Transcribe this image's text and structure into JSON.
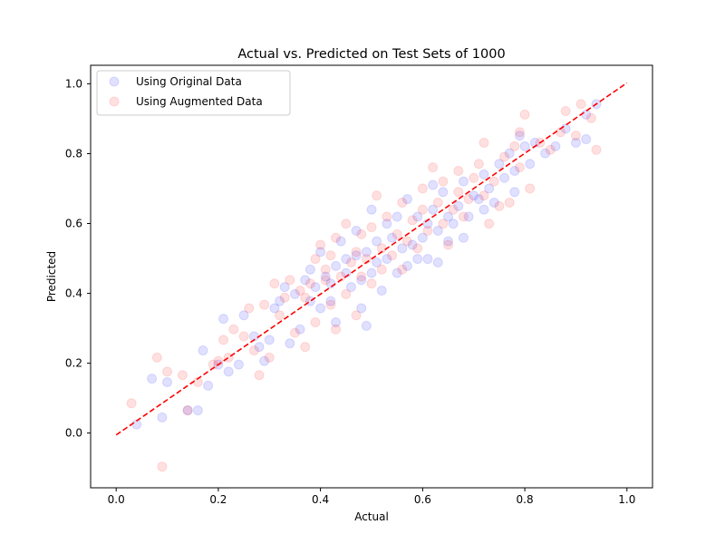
{
  "chart_data": {
    "type": "scatter",
    "title": "Actual vs. Predicted on Test Sets of 1000",
    "xlabel": "Actual",
    "ylabel": "Predicted",
    "xlim": [
      -0.05,
      1.05
    ],
    "ylim": [
      -0.15,
      1.05
    ],
    "xticks": [
      "0.0",
      "0.2",
      "0.4",
      "0.6",
      "0.8",
      "1.0"
    ],
    "yticks": [
      "0.0",
      "0.2",
      "0.4",
      "0.6",
      "0.8",
      "1.0"
    ],
    "grid": false,
    "legend_position": "top-left",
    "series": [
      {
        "name": "Using Original Data",
        "color": "#0000ff",
        "alpha": 0.12,
        "points": [
          [
            0.04,
            0.03
          ],
          [
            0.07,
            0.16
          ],
          [
            0.09,
            0.05
          ],
          [
            0.1,
            0.15
          ],
          [
            0.14,
            0.07
          ],
          [
            0.16,
            0.07
          ],
          [
            0.17,
            0.24
          ],
          [
            0.18,
            0.14
          ],
          [
            0.2,
            0.2
          ],
          [
            0.21,
            0.33
          ],
          [
            0.22,
            0.18
          ],
          [
            0.24,
            0.2
          ],
          [
            0.25,
            0.34
          ],
          [
            0.27,
            0.28
          ],
          [
            0.28,
            0.25
          ],
          [
            0.29,
            0.21
          ],
          [
            0.3,
            0.27
          ],
          [
            0.31,
            0.36
          ],
          [
            0.32,
            0.38
          ],
          [
            0.33,
            0.42
          ],
          [
            0.34,
            0.26
          ],
          [
            0.35,
            0.4
          ],
          [
            0.36,
            0.3
          ],
          [
            0.37,
            0.44
          ],
          [
            0.38,
            0.38
          ],
          [
            0.38,
            0.47
          ],
          [
            0.39,
            0.42
          ],
          [
            0.4,
            0.36
          ],
          [
            0.4,
            0.52
          ],
          [
            0.41,
            0.45
          ],
          [
            0.42,
            0.43
          ],
          [
            0.42,
            0.38
          ],
          [
            0.43,
            0.48
          ],
          [
            0.43,
            0.32
          ],
          [
            0.44,
            0.55
          ],
          [
            0.45,
            0.46
          ],
          [
            0.45,
            0.5
          ],
          [
            0.46,
            0.42
          ],
          [
            0.47,
            0.51
          ],
          [
            0.47,
            0.58
          ],
          [
            0.48,
            0.44
          ],
          [
            0.48,
            0.36
          ],
          [
            0.49,
            0.31
          ],
          [
            0.49,
            0.52
          ],
          [
            0.5,
            0.46
          ],
          [
            0.5,
            0.64
          ],
          [
            0.51,
            0.49
          ],
          [
            0.51,
            0.55
          ],
          [
            0.52,
            0.41
          ],
          [
            0.53,
            0.5
          ],
          [
            0.53,
            0.6
          ],
          [
            0.54,
            0.56
          ],
          [
            0.55,
            0.46
          ],
          [
            0.55,
            0.62
          ],
          [
            0.56,
            0.53
          ],
          [
            0.57,
            0.48
          ],
          [
            0.57,
            0.67
          ],
          [
            0.58,
            0.54
          ],
          [
            0.59,
            0.62
          ],
          [
            0.59,
            0.5
          ],
          [
            0.6,
            0.56
          ],
          [
            0.61,
            0.6
          ],
          [
            0.61,
            0.5
          ],
          [
            0.62,
            0.64
          ],
          [
            0.62,
            0.71
          ],
          [
            0.63,
            0.49
          ],
          [
            0.63,
            0.58
          ],
          [
            0.64,
            0.69
          ],
          [
            0.65,
            0.62
          ],
          [
            0.65,
            0.55
          ],
          [
            0.66,
            0.6
          ],
          [
            0.67,
            0.65
          ],
          [
            0.68,
            0.56
          ],
          [
            0.68,
            0.72
          ],
          [
            0.69,
            0.62
          ],
          [
            0.7,
            0.68
          ],
          [
            0.71,
            0.67
          ],
          [
            0.72,
            0.64
          ],
          [
            0.72,
            0.74
          ],
          [
            0.73,
            0.7
          ],
          [
            0.74,
            0.66
          ],
          [
            0.75,
            0.77
          ],
          [
            0.76,
            0.73
          ],
          [
            0.77,
            0.8
          ],
          [
            0.78,
            0.69
          ],
          [
            0.78,
            0.75
          ],
          [
            0.79,
            0.85
          ],
          [
            0.8,
            0.82
          ],
          [
            0.81,
            0.77
          ],
          [
            0.82,
            0.83
          ],
          [
            0.84,
            0.8
          ],
          [
            0.86,
            0.82
          ],
          [
            0.88,
            0.87
          ],
          [
            0.9,
            0.83
          ],
          [
            0.92,
            0.91
          ],
          [
            0.92,
            0.84
          ],
          [
            0.94,
            0.94
          ]
        ]
      },
      {
        "name": "Using Augmented Data",
        "color": "#ff0000",
        "alpha": 0.12,
        "points": [
          [
            0.03,
            0.09
          ],
          [
            0.08,
            0.22
          ],
          [
            0.09,
            -0.09
          ],
          [
            0.1,
            0.18
          ],
          [
            0.13,
            0.17
          ],
          [
            0.14,
            0.07
          ],
          [
            0.16,
            0.15
          ],
          [
            0.19,
            0.2
          ],
          [
            0.2,
            0.21
          ],
          [
            0.21,
            0.27
          ],
          [
            0.22,
            0.22
          ],
          [
            0.23,
            0.3
          ],
          [
            0.25,
            0.28
          ],
          [
            0.26,
            0.36
          ],
          [
            0.27,
            0.24
          ],
          [
            0.28,
            0.17
          ],
          [
            0.29,
            0.37
          ],
          [
            0.3,
            0.22
          ],
          [
            0.31,
            0.43
          ],
          [
            0.32,
            0.34
          ],
          [
            0.33,
            0.39
          ],
          [
            0.34,
            0.44
          ],
          [
            0.35,
            0.29
          ],
          [
            0.36,
            0.41
          ],
          [
            0.37,
            0.25
          ],
          [
            0.37,
            0.39
          ],
          [
            0.38,
            0.43
          ],
          [
            0.39,
            0.32
          ],
          [
            0.39,
            0.5
          ],
          [
            0.4,
            0.54
          ],
          [
            0.41,
            0.44
          ],
          [
            0.41,
            0.47
          ],
          [
            0.42,
            0.37
          ],
          [
            0.42,
            0.51
          ],
          [
            0.43,
            0.3
          ],
          [
            0.43,
            0.56
          ],
          [
            0.44,
            0.45
          ],
          [
            0.45,
            0.4
          ],
          [
            0.45,
            0.6
          ],
          [
            0.46,
            0.49
          ],
          [
            0.47,
            0.52
          ],
          [
            0.47,
            0.34
          ],
          [
            0.48,
            0.57
          ],
          [
            0.48,
            0.45
          ],
          [
            0.49,
            0.5
          ],
          [
            0.5,
            0.59
          ],
          [
            0.5,
            0.43
          ],
          [
            0.51,
            0.68
          ],
          [
            0.52,
            0.53
          ],
          [
            0.52,
            0.47
          ],
          [
            0.53,
            0.62
          ],
          [
            0.54,
            0.51
          ],
          [
            0.55,
            0.57
          ],
          [
            0.56,
            0.47
          ],
          [
            0.56,
            0.66
          ],
          [
            0.57,
            0.55
          ],
          [
            0.58,
            0.61
          ],
          [
            0.59,
            0.53
          ],
          [
            0.6,
            0.64
          ],
          [
            0.6,
            0.7
          ],
          [
            0.61,
            0.58
          ],
          [
            0.62,
            0.76
          ],
          [
            0.63,
            0.66
          ],
          [
            0.64,
            0.6
          ],
          [
            0.64,
            0.72
          ],
          [
            0.65,
            0.54
          ],
          [
            0.66,
            0.64
          ],
          [
            0.67,
            0.69
          ],
          [
            0.67,
            0.75
          ],
          [
            0.68,
            0.62
          ],
          [
            0.69,
            0.67
          ],
          [
            0.7,
            0.73
          ],
          [
            0.71,
            0.77
          ],
          [
            0.72,
            0.68
          ],
          [
            0.72,
            0.83
          ],
          [
            0.73,
            0.6
          ],
          [
            0.74,
            0.72
          ],
          [
            0.75,
            0.65
          ],
          [
            0.76,
            0.79
          ],
          [
            0.77,
            0.66
          ],
          [
            0.78,
            0.82
          ],
          [
            0.79,
            0.86
          ],
          [
            0.79,
            0.76
          ],
          [
            0.8,
            0.91
          ],
          [
            0.81,
            0.7
          ],
          [
            0.83,
            0.83
          ],
          [
            0.85,
            0.81
          ],
          [
            0.87,
            0.86
          ],
          [
            0.88,
            0.92
          ],
          [
            0.9,
            0.85
          ],
          [
            0.91,
            0.94
          ],
          [
            0.93,
            0.9
          ],
          [
            0.94,
            0.81
          ]
        ]
      },
      {
        "name": "",
        "type": "line",
        "style": "dashed",
        "color": "#ff0000",
        "points": [
          [
            0,
            0
          ],
          [
            1,
            1
          ]
        ]
      }
    ]
  }
}
